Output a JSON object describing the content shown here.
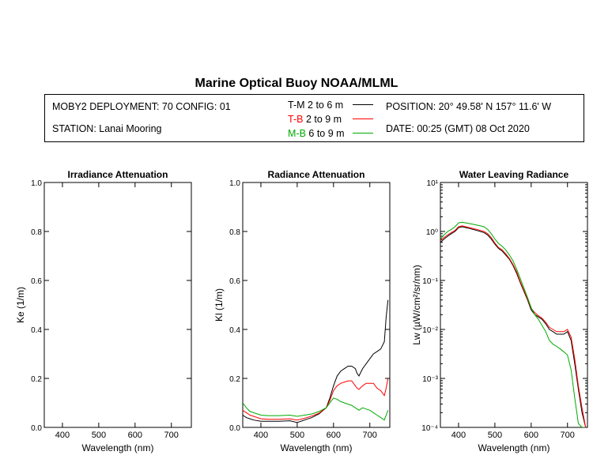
{
  "title": "Marine Optical Buoy NOAA/MLML",
  "info": {
    "deployment": "MOBY2 DEPLOYMENT: 70 CONFIG: 01",
    "station": "STATION: Lanai Mooring",
    "position": "POSITION: 20° 49.58' N   157° 11.6' W",
    "date": "DATE: 00:25 (GMT) 08 Oct 2020",
    "legend": [
      {
        "key": "T-M",
        "range": "2 to 6  m",
        "color": "#000000"
      },
      {
        "key": "T-B",
        "range": "2 to 9  m",
        "color": "#ff0000"
      },
      {
        "key": "M-B",
        "range": "6 to 9  m",
        "color": "#00aa00"
      }
    ]
  },
  "chart_data": [
    {
      "type": "line",
      "title": "Irradiance Attenuation",
      "xlabel": "Wavelength (nm)",
      "ylabel": "Ke  (1/m)",
      "xlim": [
        350,
        755
      ],
      "ylim": [
        0,
        1
      ],
      "xticks": [
        400,
        500,
        600,
        700
      ],
      "yticks": [
        "0.0",
        "0.2",
        "0.4",
        "0.6",
        "0.8",
        "1.0"
      ],
      "series": []
    },
    {
      "type": "line",
      "title": "Radiance Attenuation",
      "xlabel": "Wavelength (nm)",
      "ylabel": "Kl  (1/m)",
      "xlim": [
        350,
        755
      ],
      "ylim": [
        0,
        1
      ],
      "xticks": [
        400,
        500,
        600,
        700
      ],
      "yticks": [
        "0.0",
        "0.2",
        "0.4",
        "0.6",
        "0.8",
        "1.0"
      ],
      "series": [
        {
          "key": "T-M",
          "color": "#000000",
          "x": [
            350,
            360,
            370,
            380,
            400,
            420,
            450,
            480,
            500,
            520,
            540,
            560,
            580,
            590,
            600,
            610,
            620,
            630,
            640,
            650,
            660,
            665,
            670,
            680,
            690,
            700,
            710,
            720,
            730,
            740,
            745,
            750
          ],
          "y": [
            0.05,
            0.04,
            0.035,
            0.03,
            0.025,
            0.025,
            0.025,
            0.027,
            0.02,
            0.03,
            0.04,
            0.055,
            0.08,
            0.12,
            0.17,
            0.21,
            0.23,
            0.24,
            0.25,
            0.25,
            0.24,
            0.22,
            0.21,
            0.24,
            0.26,
            0.28,
            0.3,
            0.31,
            0.32,
            0.35,
            0.45,
            0.52
          ]
        },
        {
          "key": "T-B",
          "color": "#ff0000",
          "x": [
            350,
            360,
            370,
            380,
            400,
            420,
            450,
            480,
            500,
            520,
            540,
            560,
            580,
            590,
            600,
            610,
            620,
            630,
            640,
            650,
            660,
            665,
            670,
            680,
            690,
            700,
            710,
            720,
            730,
            740,
            745,
            750
          ],
          "y": [
            0.07,
            0.06,
            0.05,
            0.045,
            0.035,
            0.033,
            0.033,
            0.035,
            0.03,
            0.037,
            0.046,
            0.058,
            0.08,
            0.11,
            0.15,
            0.17,
            0.18,
            0.185,
            0.19,
            0.19,
            0.17,
            0.16,
            0.155,
            0.17,
            0.18,
            0.18,
            0.18,
            0.16,
            0.15,
            0.13,
            0.16,
            0.2
          ]
        },
        {
          "key": "M-B",
          "color": "#00aa00",
          "x": [
            350,
            360,
            370,
            380,
            400,
            420,
            450,
            480,
            500,
            520,
            540,
            560,
            580,
            590,
            600,
            610,
            620,
            630,
            640,
            650,
            660,
            665,
            670,
            680,
            690,
            700,
            710,
            720,
            730,
            740,
            745,
            750
          ],
          "y": [
            0.1,
            0.08,
            0.065,
            0.06,
            0.05,
            0.048,
            0.048,
            0.05,
            0.045,
            0.05,
            0.055,
            0.065,
            0.08,
            0.1,
            0.12,
            0.115,
            0.105,
            0.1,
            0.095,
            0.09,
            0.08,
            0.075,
            0.07,
            0.08,
            0.075,
            0.07,
            0.06,
            0.05,
            0.04,
            0.03,
            0.05,
            0.07
          ]
        }
      ]
    },
    {
      "type": "line",
      "title": "Water Leaving Radiance",
      "xlabel": "Wavelength (nm)",
      "ylabel": "Lw  (µW/cm²/sr/nm)",
      "xlim": [
        350,
        755
      ],
      "ylim": [
        0.0001,
        10
      ],
      "yscale": "log",
      "xticks": [
        400,
        500,
        600,
        700
      ],
      "ytick_exponents": [
        1,
        0,
        -1,
        -2,
        -3,
        -4
      ],
      "series": [
        {
          "key": "T-M",
          "color": "#000000",
          "x": [
            350,
            360,
            370,
            380,
            390,
            400,
            410,
            420,
            430,
            440,
            450,
            460,
            470,
            480,
            490,
            500,
            510,
            520,
            530,
            540,
            550,
            560,
            570,
            580,
            590,
            600,
            610,
            620,
            630,
            640,
            650,
            660,
            670,
            680,
            690,
            700,
            710,
            720,
            730,
            740,
            750
          ],
          "y": [
            0.6,
            0.7,
            0.8,
            0.9,
            1.0,
            1.2,
            1.25,
            1.2,
            1.15,
            1.1,
            1.05,
            1.0,
            0.95,
            0.85,
            0.7,
            0.55,
            0.45,
            0.4,
            0.33,
            0.27,
            0.2,
            0.14,
            0.09,
            0.06,
            0.04,
            0.025,
            0.02,
            0.018,
            0.016,
            0.013,
            0.01,
            0.009,
            0.008,
            0.008,
            0.008,
            0.009,
            0.006,
            0.002,
            0.0006,
            0.0002,
            0.0001
          ]
        },
        {
          "key": "T-B",
          "color": "#ff0000",
          "x": [
            350,
            360,
            370,
            380,
            390,
            400,
            410,
            420,
            430,
            440,
            450,
            460,
            470,
            480,
            490,
            500,
            510,
            520,
            530,
            540,
            550,
            560,
            570,
            580,
            590,
            600,
            610,
            620,
            630,
            640,
            650,
            660,
            670,
            680,
            690,
            700,
            710,
            720,
            730,
            740,
            750
          ],
          "y": [
            0.65,
            0.75,
            0.85,
            0.95,
            1.05,
            1.25,
            1.3,
            1.25,
            1.2,
            1.15,
            1.1,
            1.05,
            1.0,
            0.9,
            0.75,
            0.58,
            0.47,
            0.42,
            0.35,
            0.28,
            0.21,
            0.15,
            0.095,
            0.063,
            0.042,
            0.027,
            0.022,
            0.019,
            0.017,
            0.014,
            0.011,
            0.01,
            0.009,
            0.009,
            0.009,
            0.01,
            0.007,
            0.0025,
            0.0007,
            0.00025,
            0.0001
          ]
        },
        {
          "key": "M-B",
          "color": "#00aa00",
          "x": [
            350,
            360,
            370,
            380,
            390,
            400,
            410,
            420,
            430,
            440,
            450,
            460,
            470,
            480,
            490,
            500,
            510,
            520,
            530,
            540,
            550,
            560,
            570,
            580,
            590,
            600,
            610,
            620,
            630,
            640,
            650,
            660,
            670,
            680,
            690,
            700,
            710,
            720,
            730,
            740,
            750
          ],
          "y": [
            0.7,
            0.85,
            1.0,
            1.1,
            1.25,
            1.5,
            1.55,
            1.5,
            1.45,
            1.4,
            1.35,
            1.3,
            1.25,
            1.1,
            0.9,
            0.7,
            0.57,
            0.5,
            0.42,
            0.33,
            0.25,
            0.17,
            0.11,
            0.07,
            0.045,
            0.028,
            0.02,
            0.016,
            0.012,
            0.009,
            0.006,
            0.005,
            0.0045,
            0.004,
            0.0035,
            0.003,
            0.0015,
            0.0004,
            0.00012,
            0.0001,
            0.0001
          ]
        }
      ]
    }
  ]
}
